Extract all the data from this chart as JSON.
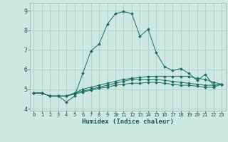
{
  "xlabel": "Humidex (Indice chaleur)",
  "ylabel": "",
  "bg_color": "#cce8e0",
  "grid_color": "#aad0c8",
  "line_color": "#1a6b60",
  "xlim": [
    -0.5,
    23.5
  ],
  "ylim": [
    3.9,
    9.4
  ],
  "xticks": [
    0,
    1,
    2,
    3,
    4,
    5,
    6,
    7,
    8,
    9,
    10,
    11,
    12,
    13,
    14,
    15,
    16,
    17,
    18,
    19,
    20,
    21,
    22,
    23
  ],
  "yticks": [
    4,
    5,
    6,
    7,
    8,
    9
  ],
  "series": [
    [
      4.8,
      4.8,
      4.65,
      4.65,
      4.35,
      4.65,
      5.8,
      6.95,
      7.3,
      8.3,
      8.85,
      8.95,
      8.85,
      7.7,
      8.05,
      6.85,
      6.15,
      5.95,
      6.05,
      5.8,
      5.45,
      5.75,
      5.2,
      5.25
    ],
    [
      4.8,
      4.8,
      4.65,
      4.65,
      4.65,
      4.8,
      5.0,
      5.1,
      5.2,
      5.3,
      5.4,
      5.5,
      5.55,
      5.6,
      5.65,
      5.65,
      5.65,
      5.65,
      5.65,
      5.65,
      5.55,
      5.5,
      5.35,
      5.25
    ],
    [
      4.8,
      4.8,
      4.65,
      4.65,
      4.65,
      4.8,
      4.9,
      5.0,
      5.1,
      5.2,
      5.3,
      5.4,
      5.5,
      5.5,
      5.5,
      5.5,
      5.45,
      5.4,
      5.35,
      5.3,
      5.25,
      5.2,
      5.2,
      5.25
    ],
    [
      4.8,
      4.8,
      4.65,
      4.65,
      4.65,
      4.75,
      4.85,
      4.95,
      5.05,
      5.1,
      5.2,
      5.25,
      5.3,
      5.3,
      5.35,
      5.35,
      5.3,
      5.25,
      5.2,
      5.2,
      5.15,
      5.1,
      5.1,
      5.25
    ]
  ]
}
